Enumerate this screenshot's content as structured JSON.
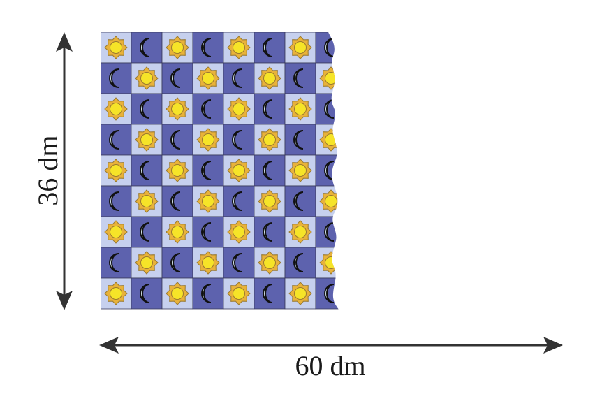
{
  "figure": {
    "height_label": "36 dm",
    "width_label": "60 dm"
  },
  "pattern": {
    "rows": 9,
    "visible_columns": 8,
    "tile_colors": {
      "light": "#c6d0ee",
      "dark": "#5d62ae"
    },
    "icons": [
      "sun-icon",
      "moon-icon"
    ],
    "sun_colors": {
      "rays": "#e8b23a",
      "center": "#f6e428",
      "outline": "#9a7a30"
    },
    "moon_colors": {
      "fill": "#d4e4ec",
      "outline": "#111111"
    }
  },
  "arrow_color": "#333333"
}
